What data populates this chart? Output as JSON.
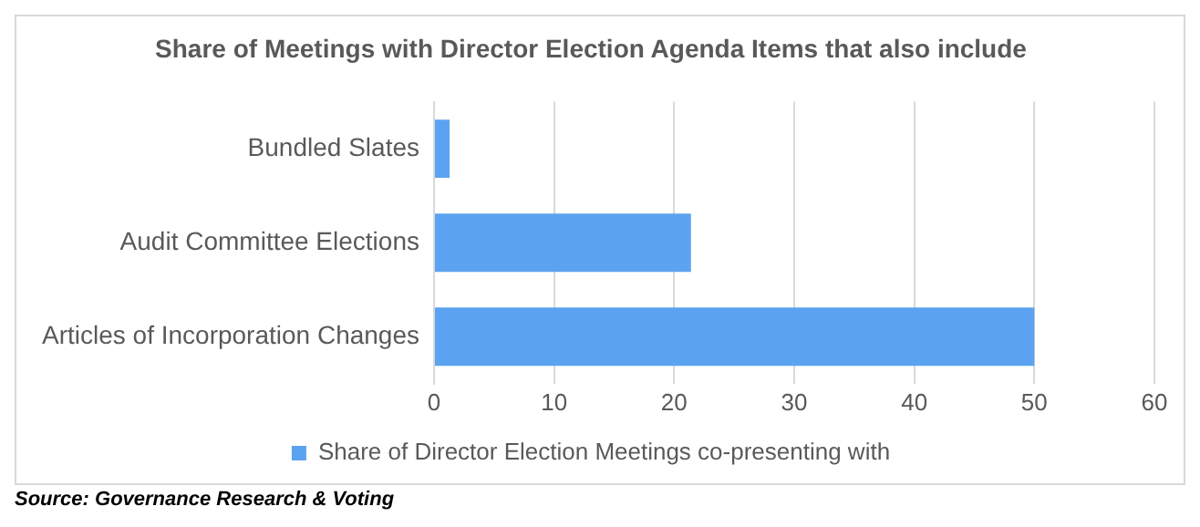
{
  "chart_data": {
    "type": "bar",
    "orientation": "horizontal",
    "title": "Share of Meetings with Director Election Agenda Items that also include",
    "categories": [
      "Bundled Slates",
      "Audit Committee Elections",
      "Articles of Incorporation Changes"
    ],
    "series": [
      {
        "name": "Share of Director Election Meetings co-presenting with",
        "color": "#5ba3f0",
        "values": [
          1.3,
          21.4,
          50
        ]
      }
    ],
    "xlim": [
      0,
      60
    ],
    "xticks": [
      0,
      10,
      20,
      30,
      40,
      50,
      60
    ],
    "grid": "x",
    "legend": "bottom",
    "annotations": [
      "Source: Governance Research & Voting"
    ]
  }
}
